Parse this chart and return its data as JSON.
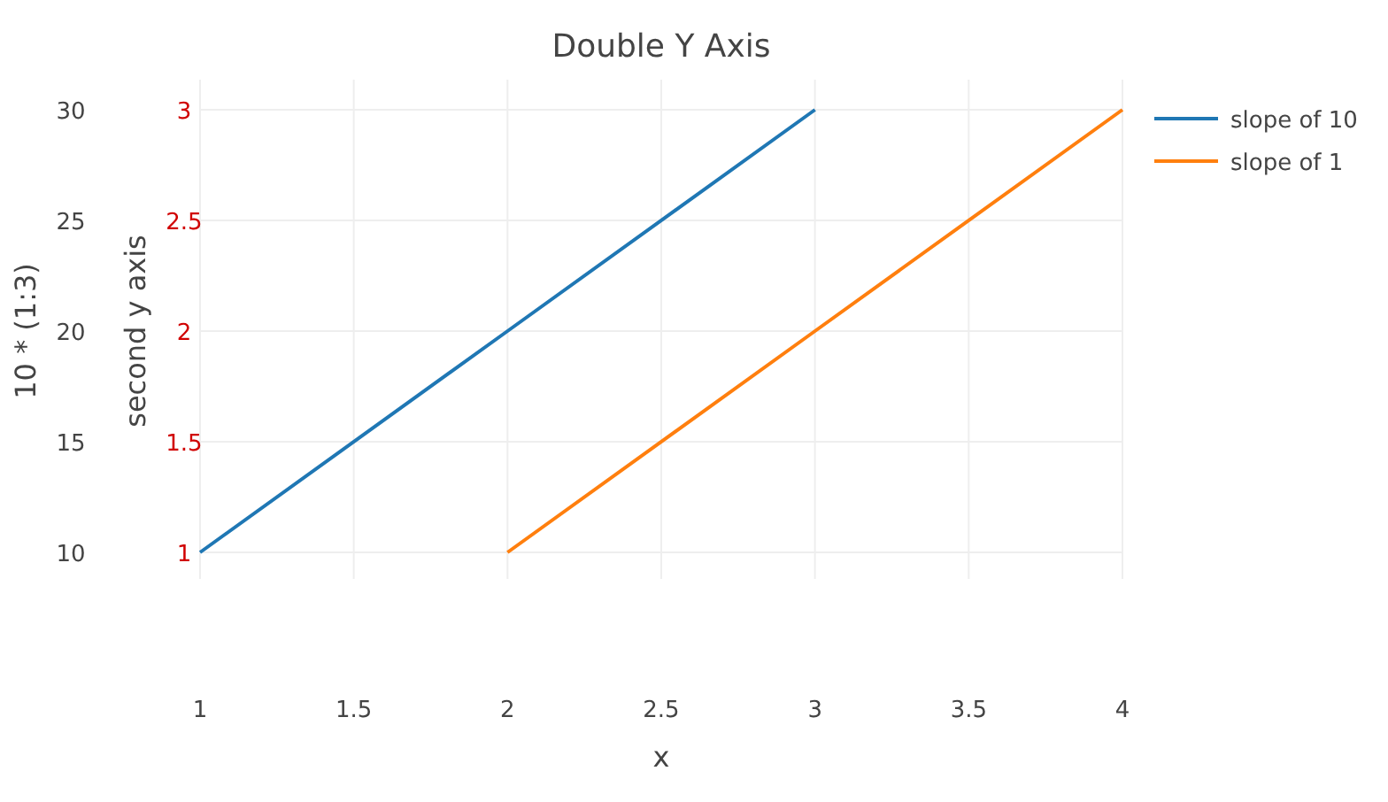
{
  "chart_data": {
    "type": "line",
    "title": "Double Y Axis",
    "xlabel": "x",
    "ylabel": "10 * (1:3)",
    "y2label": "second y axis",
    "series": [
      {
        "name": "slope of 10",
        "color": "#1f77b4",
        "x": [
          1,
          2,
          3
        ],
        "values": [
          10,
          20,
          30
        ]
      },
      {
        "name": "slope of 1",
        "color": "#ff7f0e",
        "x": [
          2,
          3,
          4
        ],
        "values": [
          1,
          2,
          3
        ],
        "axis": "y2"
      }
    ],
    "xlim": [
      1,
      4
    ],
    "xticks": [
      1,
      1.5,
      2,
      2.5,
      3,
      3.5,
      4
    ],
    "ylim": [
      10,
      30
    ],
    "yticks": [
      10,
      15,
      20,
      25,
      30
    ],
    "y2lim": [
      1,
      3
    ],
    "y2ticks": [
      1,
      1.5,
      2,
      2.5,
      3
    ],
    "grid": true,
    "legend": "top right",
    "marker": "none",
    "line_style": "solid"
  }
}
